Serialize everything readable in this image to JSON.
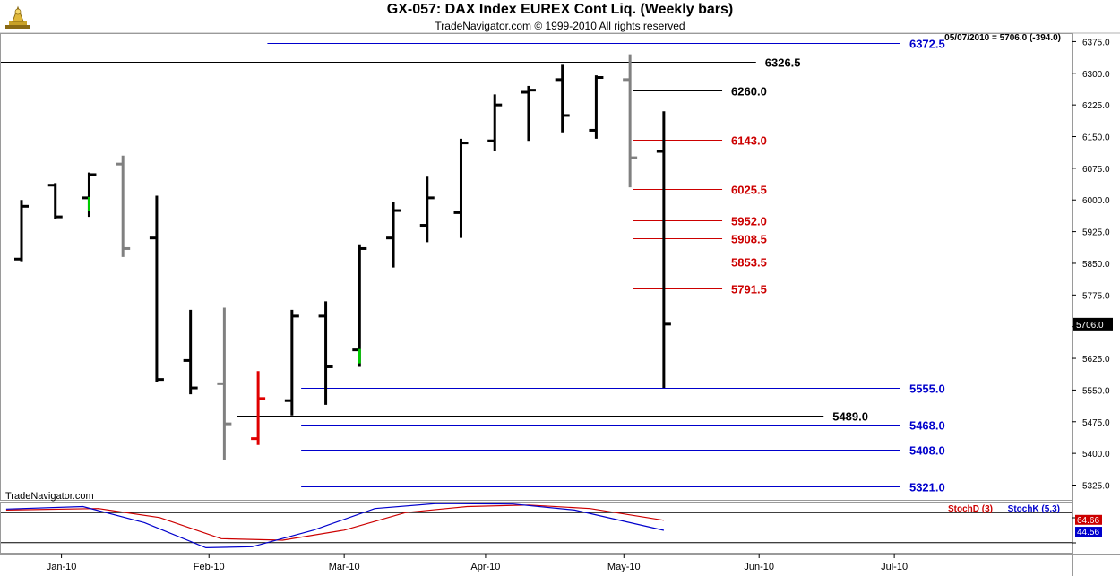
{
  "header": {
    "title": "GX-057:  DAX Index EUREX Cont Liq.  (Weekly bars)",
    "subtitle": "TradeNavigator.com © 1999-2010 All rights reserved"
  },
  "logo": {
    "icon": "trade-navigator-logo-icon"
  },
  "watermark": "TradeNavigator.com",
  "colors": {
    "up_bar": "#000000",
    "down_bar": "#808080",
    "red_bar": "#e00000",
    "green_tick": "#00cc00",
    "level_red": "#cc0000",
    "level_blue": "#0000cc",
    "level_black": "#000000",
    "stoch_d": "#cc0000",
    "stoch_k": "#0000cc"
  },
  "chart_data": [
    {
      "type": "ohlc",
      "title": "GX-057:  DAX Index EUREX Cont Liq.  (Weekly bars)",
      "info": "05/07/2010 = 5706.0 (-394.0)",
      "last_price_label": "5706.0",
      "ylim": [
        5290,
        6395
      ],
      "y_ticks": [
        "6375.0",
        "6300.0",
        "6225.0",
        "6150.0",
        "6075.0",
        "6000.0",
        "5925.0",
        "5850.0",
        "5775.0",
        "5700.0",
        "5625.0",
        "5550.0",
        "5475.0",
        "5400.0",
        "5325.0"
      ],
      "x_labels": [
        "Jan-10",
        "Feb-10",
        "Mar-10",
        "Apr-10",
        "May-10",
        "Jun-10",
        "Jul-10"
      ],
      "x_label_weeks": [
        1.3,
        6.1,
        10.5,
        15.1,
        19.6,
        24.0,
        28.4
      ],
      "bars": [
        {
          "w": 0.0,
          "o": 5860,
          "h": 6000,
          "l": 5855,
          "c": 5985,
          "color": "up"
        },
        {
          "w": 1.1,
          "o": 6035,
          "h": 6040,
          "l": 5955,
          "c": 5960,
          "color": "up"
        },
        {
          "w": 2.2,
          "o": 6005,
          "h": 6065,
          "l": 5960,
          "c": 6060,
          "color": "up",
          "mark": "green"
        },
        {
          "w": 3.3,
          "o": 6085,
          "h": 6105,
          "l": 5865,
          "c": 5885,
          "color": "down"
        },
        {
          "w": 4.4,
          "o": 5910,
          "h": 6010,
          "l": 5570,
          "c": 5575,
          "color": "up"
        },
        {
          "w": 5.5,
          "o": 5620,
          "h": 5740,
          "l": 5540,
          "c": 5555,
          "color": "up"
        },
        {
          "w": 6.6,
          "o": 5565,
          "h": 5745,
          "l": 5385,
          "c": 5470,
          "color": "down"
        },
        {
          "w": 7.7,
          "o": 5435,
          "h": 5595,
          "l": 5420,
          "c": 5530,
          "color": "red"
        },
        {
          "w": 8.8,
          "o": 5525,
          "h": 5740,
          "l": 5490,
          "c": 5725,
          "color": "up"
        },
        {
          "w": 9.9,
          "o": 5725,
          "h": 5760,
          "l": 5515,
          "c": 5605,
          "color": "up"
        },
        {
          "w": 11.0,
          "o": 5645,
          "h": 5895,
          "l": 5605,
          "c": 5885,
          "color": "up",
          "mark": "green"
        },
        {
          "w": 12.1,
          "o": 5910,
          "h": 5995,
          "l": 5840,
          "c": 5975,
          "color": "up"
        },
        {
          "w": 13.2,
          "o": 5940,
          "h": 6055,
          "l": 5900,
          "c": 6005,
          "color": "up"
        },
        {
          "w": 14.3,
          "o": 5970,
          "h": 6145,
          "l": 5910,
          "c": 6135,
          "color": "up"
        },
        {
          "w": 15.4,
          "o": 6140,
          "h": 6250,
          "l": 6115,
          "c": 6225,
          "color": "up"
        },
        {
          "w": 16.5,
          "o": 6255,
          "h": 6270,
          "l": 6140,
          "c": 6260,
          "color": "up"
        },
        {
          "w": 17.6,
          "o": 6285,
          "h": 6320,
          "l": 6160,
          "c": 6200,
          "color": "up"
        },
        {
          "w": 18.7,
          "o": 6165,
          "h": 6295,
          "l": 6145,
          "c": 6290,
          "color": "up"
        },
        {
          "w": 19.8,
          "o": 6285,
          "h": 6345,
          "l": 6030,
          "c": 6100,
          "color": "down"
        },
        {
          "w": 20.9,
          "o": 6115,
          "h": 6210,
          "l": 5555,
          "c": 5706,
          "color": "up"
        }
      ],
      "levels": [
        {
          "value": 6372.5,
          "label": "6372.5",
          "color": "blue",
          "from": 8.0,
          "to": 28.6
        },
        {
          "value": 6326.5,
          "label": "6326.5",
          "color": "black",
          "from": -2.0,
          "to": 23.9
        },
        {
          "value": 6260.0,
          "label": "6260.0",
          "color": "black",
          "from": 19.9,
          "to": 22.8
        },
        {
          "value": 6143.0,
          "label": "6143.0",
          "color": "red",
          "from": 19.9,
          "to": 22.8
        },
        {
          "value": 6025.5,
          "label": "6025.5",
          "color": "red",
          "from": 19.9,
          "to": 22.8
        },
        {
          "value": 5952.0,
          "label": "5952.0",
          "color": "red",
          "from": 19.9,
          "to": 22.8
        },
        {
          "value": 5908.5,
          "label": "5908.5",
          "color": "red",
          "from": 19.9,
          "to": 22.8
        },
        {
          "value": 5853.5,
          "label": "5853.5",
          "color": "red",
          "from": 19.9,
          "to": 22.8
        },
        {
          "value": 5791.5,
          "label": "5791.5",
          "color": "red",
          "from": 19.9,
          "to": 22.8
        },
        {
          "value": 5555.0,
          "label": "5555.0",
          "color": "blue",
          "from": 9.1,
          "to": 28.6
        },
        {
          "value": 5489.0,
          "label": "5489.0",
          "color": "black",
          "from": 7.0,
          "to": 26.1
        },
        {
          "value": 5468.0,
          "label": "5468.0",
          "color": "blue",
          "from": 9.1,
          "to": 28.6
        },
        {
          "value": 5408.0,
          "label": "5408.0",
          "color": "blue",
          "from": 9.1,
          "to": 28.6
        },
        {
          "value": 5321.0,
          "label": "5321.0",
          "color": "blue",
          "from": 9.1,
          "to": 28.6
        }
      ]
    },
    {
      "type": "line",
      "legend": [
        {
          "name": "StochD (3)",
          "color": "red"
        },
        {
          "name": "StochK (5,3)",
          "color": "blue"
        }
      ],
      "ylim": [
        0,
        100
      ],
      "value_labels": [
        "64.66",
        "44.56"
      ],
      "series": [
        {
          "name": "StochD (3)",
          "color": "red",
          "values": [
            [
              -0.5,
              85
            ],
            [
              2.5,
              88
            ],
            [
              4.5,
              70
            ],
            [
              6.5,
              28
            ],
            [
              8.5,
              25
            ],
            [
              10.5,
              45
            ],
            [
              12.5,
              80
            ],
            [
              14.5,
              92
            ],
            [
              16.5,
              95
            ],
            [
              18.5,
              88
            ],
            [
              20.9,
              64.66
            ]
          ]
        },
        {
          "name": "StochK (5,3)",
          "color": "blue",
          "values": [
            [
              -0.5,
              87
            ],
            [
              2.0,
              92
            ],
            [
              4.0,
              60
            ],
            [
              6.0,
              10
            ],
            [
              7.5,
              12
            ],
            [
              9.5,
              45
            ],
            [
              11.5,
              88
            ],
            [
              13.5,
              98
            ],
            [
              16.0,
              97
            ],
            [
              18.0,
              85
            ],
            [
              20.9,
              44.56
            ]
          ]
        }
      ]
    }
  ]
}
